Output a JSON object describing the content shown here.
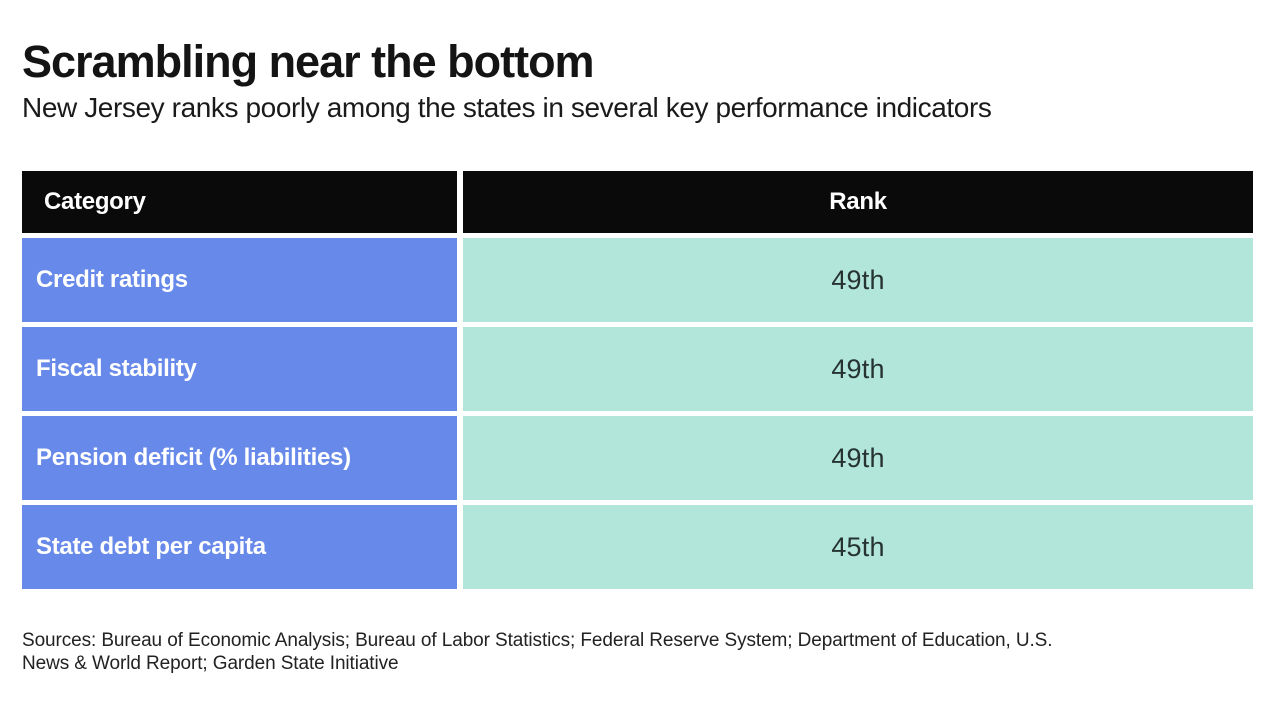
{
  "header": {
    "title": "Scrambling near the bottom",
    "subtitle": "New Jersey ranks poorly among the states in several key performance indicators"
  },
  "table": {
    "columns": [
      "Category",
      "Rank"
    ],
    "rows": [
      {
        "category": "Credit ratings",
        "rank": "49th"
      },
      {
        "category": "Fiscal stability",
        "rank": "49th"
      },
      {
        "category": "Pension deficit (% liabilities)",
        "rank": "49th"
      },
      {
        "category": "State debt per capita",
        "rank": "45th"
      }
    ]
  },
  "sources": {
    "line1": "Sources: Bureau of Economic Analysis; Bureau of Labor Statistics; Federal Reserve System; Department of Education, U.S.",
    "line2": "News & World Report; Garden State Initiative"
  },
  "colors": {
    "header_bg": "#0a0a0a",
    "category_bg": "#6789e9",
    "rank_bg": "#b2e6db",
    "category_text": "#ffffff",
    "rank_text": "#263330",
    "title_text": "#141414"
  },
  "chart_data": {
    "type": "table",
    "title": "Scrambling near the bottom",
    "subtitle": "New Jersey ranks poorly among the states in several key performance indicators",
    "columns": [
      "Category",
      "Rank"
    ],
    "rows": [
      [
        "Credit ratings",
        "49th"
      ],
      [
        "Fiscal stability",
        "49th"
      ],
      [
        "Pension deficit (% liabilities)",
        "49th"
      ],
      [
        "State debt per capita",
        "45th"
      ]
    ],
    "rank_values_numeric": [
      49,
      49,
      49,
      45
    ],
    "source": "Sources: Bureau of Economic Analysis; Bureau of Labor Statistics; Federal Reserve System; Department of Education, U.S. News & World Report; Garden State Initiative",
    "layout": {
      "header_style": "black-bar",
      "category_column_color": "#6789e9",
      "rank_column_color": "#b2e6db"
    }
  }
}
